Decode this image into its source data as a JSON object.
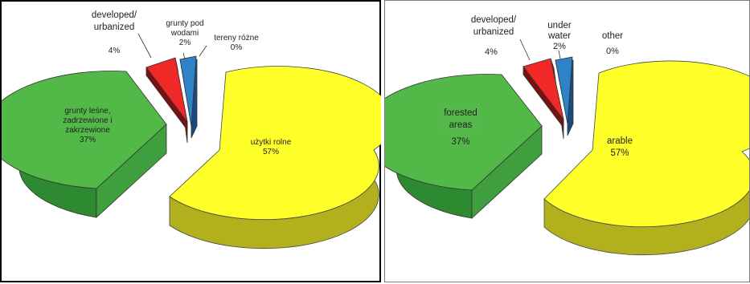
{
  "colors": {
    "arable_top": "#ffff2a",
    "arable_side": "#b3b01e",
    "forest_top": "#52b848",
    "forest_side": "#2e8a30",
    "developed_top": "#f02828",
    "developed_side": "#7a1010",
    "water_top": "#2f82c8",
    "water_side": "#1a4a80"
  },
  "chart_data": [
    {
      "type": "pie",
      "title": "",
      "legend": "none",
      "slices": [
        {
          "label": "użytki rolne",
          "value": 57,
          "value_label": "57%"
        },
        {
          "label": "grunty leśne, zadrzewione i zakrzewione",
          "value": 37,
          "value_label": "37%"
        },
        {
          "label": "developed/ urbanized",
          "value": 4,
          "value_label": "4%"
        },
        {
          "label": "grunty pod wodami",
          "value": 2,
          "value_label": "2%"
        },
        {
          "label": "tereny różne",
          "value": 0,
          "value_label": "0%"
        }
      ]
    },
    {
      "type": "pie",
      "title": "",
      "legend": "none",
      "slices": [
        {
          "label": "arable",
          "value": 57,
          "value_label": "57%"
        },
        {
          "label": "forested areas",
          "value": 37,
          "value_label": "37%"
        },
        {
          "label": "developed/ urbanized",
          "value": 4,
          "value_label": "4%"
        },
        {
          "label": "under water",
          "value": 2,
          "value_label": "2%"
        },
        {
          "label": "other",
          "value": 0,
          "value_label": "0%"
        }
      ]
    }
  ],
  "left": {
    "arable": {
      "l1": "użytki rolne",
      "v": "57%"
    },
    "forest": {
      "l1": "grunty leśne,",
      "l2": "zadrzewione i",
      "l3": "zakrzewione",
      "v": "37%"
    },
    "developed": {
      "l1": "developed/",
      "l2": "urbanized",
      "v": "4%"
    },
    "water": {
      "l1": "grunty pod",
      "l2": "wodami",
      "v": "2%"
    },
    "other": {
      "l1": "tereny różne",
      "v": "0%"
    }
  },
  "right": {
    "arable": {
      "l1": "arable",
      "v": "57%"
    },
    "forest": {
      "l1": "forested",
      "l2": "areas",
      "v": "37%"
    },
    "developed": {
      "l1": "developed/",
      "l2": "urbanized",
      "v": "4%"
    },
    "water": {
      "l1": "under",
      "l2": "water",
      "v": "2%"
    },
    "other": {
      "l1": "other",
      "v": "0%"
    }
  }
}
